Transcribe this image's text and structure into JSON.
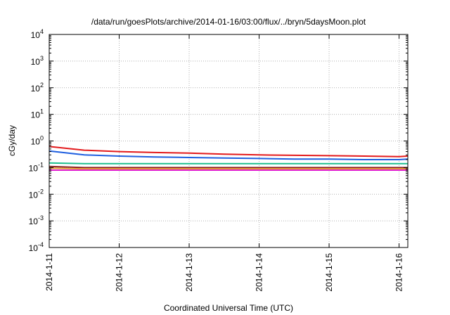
{
  "chart_data": {
    "type": "line",
    "title": "/data/run/goesPlots/archive/2014-01-16/03:00/flux/../bryn/5daysMoon.plot",
    "xlabel": "Coordinated Universal Time (UTC)",
    "ylabel": "cGy/day",
    "y_scale": "log",
    "ylim": [
      0.0001,
      10000
    ],
    "y_ticks": [
      {
        "value": 0.0001,
        "base": "10",
        "exp": "-4"
      },
      {
        "value": 0.001,
        "base": "10",
        "exp": "-3"
      },
      {
        "value": 0.01,
        "base": "10",
        "exp": "-2"
      },
      {
        "value": 0.1,
        "base": "10",
        "exp": "-1"
      },
      {
        "value": 1,
        "base": "10",
        "exp": "0"
      },
      {
        "value": 10,
        "base": "10",
        "exp": "1"
      },
      {
        "value": 100,
        "base": "10",
        "exp": "2"
      },
      {
        "value": 1000,
        "base": "10",
        "exp": "3"
      },
      {
        "value": 10000,
        "base": "10",
        "exp": "4"
      }
    ],
    "xlim": [
      "2014-01-11T00:00",
      "2014-01-16T03:00"
    ],
    "x_ticks": [
      {
        "value": "2014-01-11T00:00",
        "label": "2014-1-11"
      },
      {
        "value": "2014-01-12T00:00",
        "label": "2014-1-12"
      },
      {
        "value": "2014-01-13T00:00",
        "label": "2014-1-13"
      },
      {
        "value": "2014-01-14T00:00",
        "label": "2014-1-14"
      },
      {
        "value": "2014-01-15T00:00",
        "label": "2014-1-15"
      },
      {
        "value": "2014-01-16T00:00",
        "label": "2014-1-16"
      }
    ],
    "grid": true,
    "series": [
      {
        "color": "#e31a1c",
        "x": [
          "2014-01-11T00:00",
          "2014-01-11T12:00",
          "2014-01-12T00:00",
          "2014-01-12T12:00",
          "2014-01-13T00:00",
          "2014-01-13T12:00",
          "2014-01-14T00:00",
          "2014-01-14T12:00",
          "2014-01-15T00:00",
          "2014-01-15T12:00",
          "2014-01-16T00:00",
          "2014-01-16T03:00"
        ],
        "values": [
          0.62,
          0.45,
          0.4,
          0.37,
          0.35,
          0.32,
          0.3,
          0.29,
          0.28,
          0.27,
          0.26,
          0.27
        ]
      },
      {
        "color": "#1f5fe0",
        "x": [
          "2014-01-11T00:00",
          "2014-01-11T12:00",
          "2014-01-12T00:00",
          "2014-01-12T12:00",
          "2014-01-13T00:00",
          "2014-01-13T12:00",
          "2014-01-14T00:00",
          "2014-01-14T12:00",
          "2014-01-15T00:00",
          "2014-01-15T12:00",
          "2014-01-16T00:00",
          "2014-01-16T03:00"
        ],
        "values": [
          0.42,
          0.3,
          0.27,
          0.25,
          0.24,
          0.23,
          0.22,
          0.21,
          0.21,
          0.2,
          0.2,
          0.21
        ]
      },
      {
        "color": "#1fbf8f",
        "x": [
          "2014-01-11T00:00",
          "2014-01-11T12:00",
          "2014-01-12T00:00",
          "2014-01-12T12:00",
          "2014-01-13T00:00",
          "2014-01-13T12:00",
          "2014-01-14T00:00",
          "2014-01-14T12:00",
          "2014-01-15T00:00",
          "2014-01-15T12:00",
          "2014-01-16T00:00",
          "2014-01-16T03:00"
        ],
        "values": [
          0.15,
          0.14,
          0.14,
          0.14,
          0.14,
          0.14,
          0.14,
          0.14,
          0.14,
          0.14,
          0.14,
          0.14
        ]
      },
      {
        "color": "#8a1f1f",
        "x": [
          "2014-01-11T00:00",
          "2014-01-11T12:00",
          "2014-01-12T00:00",
          "2014-01-12T12:00",
          "2014-01-13T00:00",
          "2014-01-13T12:00",
          "2014-01-14T00:00",
          "2014-01-14T12:00",
          "2014-01-15T00:00",
          "2014-01-15T12:00",
          "2014-01-16T00:00",
          "2014-01-16T03:00"
        ],
        "values": [
          0.11,
          0.1,
          0.1,
          0.1,
          0.1,
          0.1,
          0.1,
          0.1,
          0.1,
          0.1,
          0.1,
          0.1
        ]
      },
      {
        "color": "#e8a33a",
        "x": [
          "2014-01-11T00:00",
          "2014-01-11T12:00",
          "2014-01-12T00:00",
          "2014-01-12T12:00",
          "2014-01-13T00:00",
          "2014-01-13T12:00",
          "2014-01-14T00:00",
          "2014-01-14T12:00",
          "2014-01-15T00:00",
          "2014-01-15T12:00",
          "2014-01-16T00:00",
          "2014-01-16T03:00"
        ],
        "values": [
          0.095,
          0.09,
          0.09,
          0.09,
          0.09,
          0.09,
          0.09,
          0.09,
          0.09,
          0.09,
          0.09,
          0.09
        ]
      },
      {
        "color": "#e01fd0",
        "x": [
          "2014-01-11T00:00",
          "2014-01-11T12:00",
          "2014-01-12T00:00",
          "2014-01-12T12:00",
          "2014-01-13T00:00",
          "2014-01-13T12:00",
          "2014-01-14T00:00",
          "2014-01-14T12:00",
          "2014-01-15T00:00",
          "2014-01-15T12:00",
          "2014-01-16T00:00",
          "2014-01-16T03:00"
        ],
        "values": [
          0.08,
          0.08,
          0.08,
          0.08,
          0.08,
          0.08,
          0.08,
          0.08,
          0.08,
          0.08,
          0.08,
          0.08
        ]
      }
    ]
  }
}
